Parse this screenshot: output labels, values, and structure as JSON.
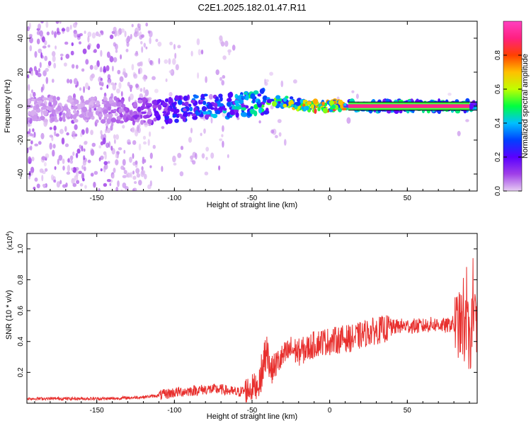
{
  "title": "C2E1.2025.182.01.47.R11",
  "colors": {
    "snr_line": "#e8302e",
    "axis": "#000000",
    "colorbar_stops": [
      "#e6ccf2",
      "#a040e8",
      "#5a00ff",
      "#0040ff",
      "#00c0ff",
      "#00ff40",
      "#c0ff00",
      "#ffc000",
      "#ff4000",
      "#ff2080",
      "#ff40c0"
    ]
  },
  "chart_data": [
    {
      "type": "heatmap",
      "name": "spectrogram",
      "title": "C2E1.2025.182.01.47.R11",
      "xlabel": "Height of straight line (km)",
      "ylabel": "Frequency (Hz)",
      "xlim": [
        -195,
        95
      ],
      "ylim": [
        -50,
        50
      ],
      "xticks": [
        -150,
        -100,
        -50,
        0,
        50
      ],
      "xtick_labels": [
        "-150",
        "-100",
        "-50",
        "0",
        "50"
      ],
      "yticks": [
        -40,
        -20,
        0,
        20,
        40
      ],
      "ytick_labels": [
        "-40",
        "-20",
        "0",
        "20",
        "40"
      ],
      "grid": false,
      "colorbar": {
        "label": "Normalized spectral amplitude",
        "range": [
          0,
          1
        ],
        "ticks": [
          0.0,
          0.2,
          0.4,
          0.6,
          0.8
        ],
        "tick_labels": [
          "0.0",
          "0.2",
          "0.4",
          "0.6",
          "0.8"
        ]
      },
      "ridge": {
        "description": "strong narrow line near 0 Hz",
        "x": [
          -150,
          -120,
          -100,
          -80,
          -60,
          -40,
          -30,
          -20,
          -10,
          0,
          10,
          30,
          50,
          70,
          90
        ],
        "freq": [
          -2,
          -3,
          -2,
          0,
          0,
          3,
          3,
          1,
          0,
          0,
          0,
          0,
          0,
          0,
          0
        ],
        "amplitude": [
          0.05,
          0.15,
          0.3,
          0.4,
          0.45,
          0.55,
          0.65,
          0.75,
          0.85,
          0.85,
          0.95,
          1.0,
          1.0,
          1.0,
          0.95
        ]
      }
    },
    {
      "type": "line",
      "name": "snr",
      "xlabel": "Height of straight line (km)",
      "ylabel": "SNR (10 * v/v)",
      "yscale_label": "(x10",
      "yscale_exp": "4",
      "ylabel_scale": "(x10^4)",
      "xlim": [
        -195,
        95
      ],
      "ylim": [
        0,
        1.1
      ],
      "xticks": [
        -150,
        -100,
        -50,
        0,
        50
      ],
      "xtick_labels": [
        "-150",
        "-100",
        "-50",
        "0",
        "50"
      ],
      "yticks": [
        0.2,
        0.4,
        0.6,
        0.8,
        1.0
      ],
      "ytick_labels": [
        "0.2",
        "0.4",
        "0.6",
        "0.8",
        "1.0"
      ],
      "grid": false,
      "series": [
        {
          "x": [
            -195,
            -180,
            -160,
            -140,
            -120,
            -110,
            -100,
            -90,
            -80,
            -70,
            -60,
            -55,
            -50,
            -45,
            -42,
            -40,
            -38,
            -35,
            -30,
            -25,
            -20,
            -15,
            -10,
            -5,
            0,
            5,
            10,
            15,
            20,
            25,
            30,
            35,
            40,
            45,
            50,
            55,
            60,
            65,
            70,
            75,
            80,
            85,
            88,
            90,
            92,
            95
          ],
          "y": [
            0.03,
            0.03,
            0.03,
            0.03,
            0.04,
            0.05,
            0.07,
            0.08,
            0.09,
            0.09,
            0.07,
            0.08,
            0.1,
            0.13,
            0.25,
            0.3,
            0.2,
            0.25,
            0.3,
            0.35,
            0.33,
            0.35,
            0.38,
            0.4,
            0.4,
            0.41,
            0.42,
            0.42,
            0.44,
            0.46,
            0.47,
            0.48,
            0.49,
            0.5,
            0.5,
            0.5,
            0.5,
            0.51,
            0.51,
            0.5,
            0.52,
            0.5,
            0.45,
            0.4,
            0.5,
            0.55
          ]
        }
      ]
    }
  ]
}
